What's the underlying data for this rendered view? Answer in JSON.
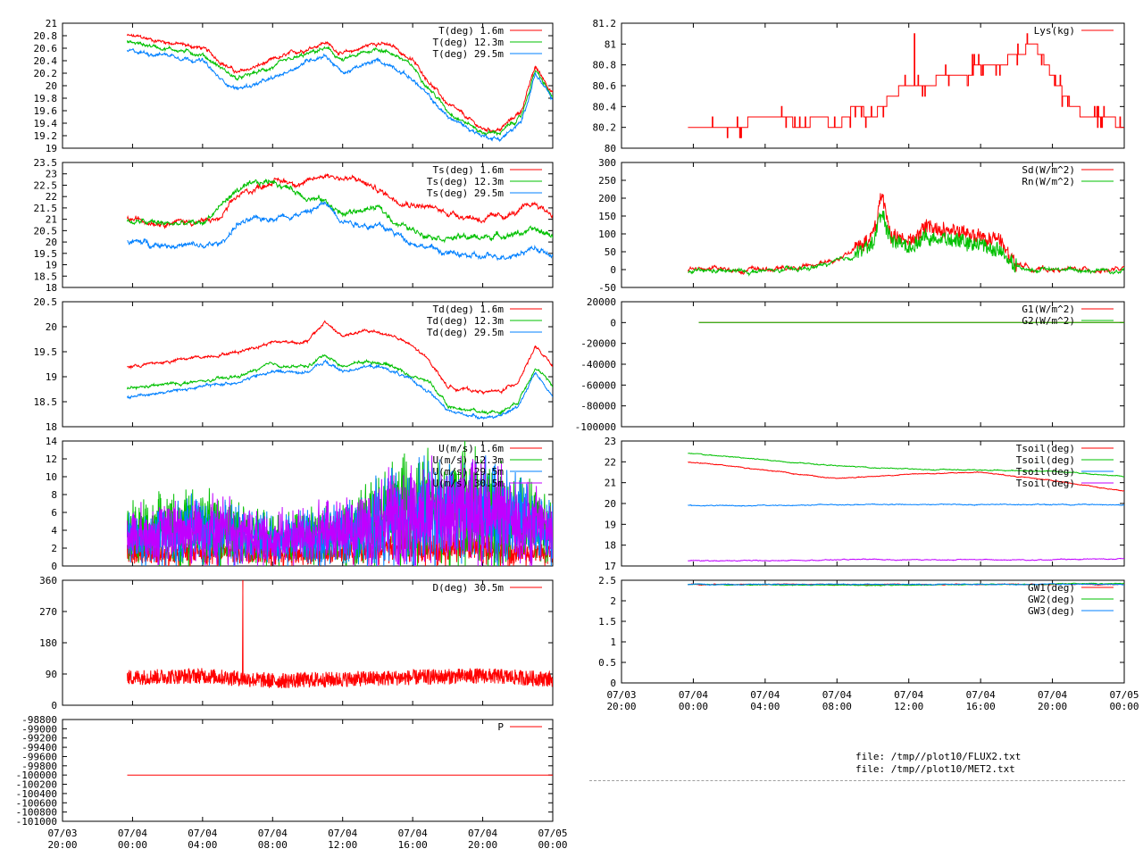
{
  "colors": {
    "red": "#ff0000",
    "green": "#00c000",
    "blue": "#0080ff",
    "purple": "#c000ff"
  },
  "files": [
    "file: /tmp//plot10/FLUX2.txt",
    "file: /tmp//plot10/MET2.txt"
  ],
  "x_axis": {
    "start_hours": -4,
    "end_hours": 24,
    "data_start_hours": -0.3,
    "ticks": [
      {
        "hours": -4,
        "date": "07/03",
        "time": "20:00"
      },
      {
        "hours": 0,
        "date": "07/04",
        "time": "00:00"
      },
      {
        "hours": 4,
        "date": "07/04",
        "time": "04:00"
      },
      {
        "hours": 8,
        "date": "07/04",
        "time": "08:00"
      },
      {
        "hours": 12,
        "date": "07/04",
        "time": "12:00"
      },
      {
        "hours": 16,
        "date": "07/04",
        "time": "16:00"
      },
      {
        "hours": 20,
        "date": "07/04",
        "time": "20:00"
      },
      {
        "hours": 24,
        "date": "07/05",
        "time": "00:00"
      }
    ]
  },
  "chart_data": [
    {
      "id": "temp",
      "type": "line",
      "ylim": [
        19,
        21
      ],
      "yticks": [
        19,
        19.2,
        19.4,
        19.6,
        19.8,
        20,
        20.2,
        20.4,
        20.6,
        20.8,
        21
      ],
      "x": [
        -0.3,
        2,
        4,
        5,
        6,
        8,
        10,
        11,
        12,
        13,
        14,
        15,
        16,
        18,
        20,
        21,
        22.2,
        23,
        24
      ],
      "series": [
        {
          "name": "T(deg)  1.6m",
          "color": "red",
          "values": [
            20.8,
            20.7,
            20.6,
            20.4,
            20.2,
            20.4,
            20.6,
            20.7,
            20.5,
            20.6,
            20.7,
            20.6,
            20.4,
            19.7,
            19.3,
            19.3,
            19.6,
            20.3,
            19.9
          ]
        },
        {
          "name": "T(deg) 12.3m",
          "color": "green",
          "values": [
            20.7,
            20.6,
            20.5,
            20.3,
            20.1,
            20.3,
            20.5,
            20.6,
            20.4,
            20.5,
            20.6,
            20.5,
            20.3,
            19.6,
            19.25,
            19.25,
            19.5,
            20.25,
            19.8
          ]
        },
        {
          "name": "T(deg) 29.5m",
          "color": "blue",
          "values": [
            20.55,
            20.5,
            20.4,
            20.1,
            19.95,
            20.1,
            20.4,
            20.5,
            20.2,
            20.3,
            20.4,
            20.3,
            20.1,
            19.5,
            19.2,
            19.15,
            19.4,
            20.2,
            19.75
          ]
        }
      ]
    },
    {
      "id": "tsonic",
      "type": "line",
      "ylim": [
        18,
        23.5
      ],
      "yticks": [
        18,
        18.5,
        19,
        19.5,
        20,
        20.5,
        21,
        21.5,
        22,
        22.5,
        23,
        23.5
      ],
      "x": [
        -0.3,
        2,
        4,
        5,
        6,
        8,
        10,
        11,
        12,
        13,
        14,
        15,
        16,
        18,
        20,
        21,
        22,
        23,
        24
      ],
      "series": [
        {
          "name": "Ts(deg)  1.6m",
          "color": "red",
          "values": [
            21,
            20.9,
            20.9,
            21,
            22,
            22.7,
            22.6,
            23,
            22.8,
            22.7,
            22.3,
            21.9,
            21.7,
            21.3,
            21,
            21.1,
            21.3,
            21.7,
            21.2
          ]
        },
        {
          "name": "Ts(deg) 12.3m",
          "color": "green",
          "values": [
            20.9,
            20.8,
            20.8,
            21.6,
            22.3,
            22.7,
            22,
            21.8,
            21.2,
            21.4,
            21.5,
            20.9,
            20.5,
            20.2,
            20.2,
            20.3,
            20.4,
            20.5,
            20.3
          ]
        },
        {
          "name": "Ts(deg) 29.5m",
          "color": "blue",
          "values": [
            20,
            19.9,
            19.8,
            19.9,
            20.8,
            21.1,
            21.3,
            21.7,
            21,
            20.8,
            20.7,
            20.4,
            20,
            19.5,
            19.3,
            19.4,
            19.5,
            19.8,
            19.3
          ]
        }
      ]
    },
    {
      "id": "tdew",
      "type": "line",
      "ylim": [
        18,
        20.5
      ],
      "yticks": [
        18,
        18.5,
        19,
        19.5,
        20,
        20.5
      ],
      "x": [
        -0.3,
        2,
        4,
        6,
        8,
        9,
        10,
        11,
        12,
        13,
        14,
        15,
        16,
        17,
        18,
        20,
        21,
        22,
        23,
        24
      ],
      "series": [
        {
          "name": "Td(deg)  1.6m",
          "color": "red",
          "values": [
            19.2,
            19.3,
            19.4,
            19.5,
            19.7,
            19.7,
            19.7,
            20.1,
            19.8,
            19.9,
            19.9,
            19.8,
            19.6,
            19.3,
            18.8,
            18.7,
            18.7,
            18.9,
            19.6,
            19.2
          ]
        },
        {
          "name": "Td(deg) 12.3m",
          "color": "green",
          "values": [
            18.75,
            18.85,
            18.9,
            19.0,
            19.25,
            19.2,
            19.2,
            19.45,
            19.2,
            19.3,
            19.3,
            19.2,
            19.0,
            18.9,
            18.4,
            18.3,
            18.3,
            18.5,
            19.2,
            18.8
          ]
        },
        {
          "name": "Td(deg) 29.5m",
          "color": "blue",
          "values": [
            18.6,
            18.7,
            18.8,
            18.9,
            19.1,
            19.1,
            19.1,
            19.3,
            19.1,
            19.2,
            19.2,
            19.1,
            18.9,
            18.7,
            18.3,
            18.2,
            18.2,
            18.4,
            19.1,
            18.6
          ]
        }
      ]
    },
    {
      "id": "wind",
      "type": "line",
      "ylim": [
        0,
        14
      ],
      "yticks": [
        0,
        2,
        4,
        6,
        8,
        10,
        12,
        14
      ],
      "x": [
        -0.3,
        4,
        8,
        12,
        16,
        20,
        24
      ],
      "series": [
        {
          "name": "U(m/s)  1.6m",
          "color": "red",
          "values": [
            1.5,
            1.5,
            1.4,
            1.5,
            2,
            1.8,
            1.4
          ]
        },
        {
          "name": "U(m/s) 12.3m",
          "color": "green",
          "values": [
            3.5,
            4.5,
            3,
            4,
            6.5,
            6.5,
            4
          ]
        },
        {
          "name": "U(m/s) 29.5m",
          "color": "blue",
          "values": [
            3,
            4,
            2.8,
            3.6,
            6,
            6,
            3.8
          ]
        },
        {
          "name": "U(m/s) 30.5m",
          "color": "purple",
          "values": [
            3.2,
            4.2,
            2.9,
            3.8,
            6,
            6.2,
            3.8
          ]
        }
      ]
    },
    {
      "id": "dir",
      "type": "line",
      "ylim": [
        0,
        360
      ],
      "yticks": [
        0,
        90,
        180,
        270,
        360
      ],
      "x": [
        -0.3,
        4,
        8,
        12,
        16,
        20,
        24
      ],
      "series": [
        {
          "name": "D(deg)  30.5m",
          "color": "red",
          "values": [
            80,
            85,
            70,
            75,
            80,
            85,
            75
          ]
        }
      ]
    },
    {
      "id": "press",
      "type": "line",
      "ylim": [
        -101000,
        -98800
      ],
      "yticks": [
        -101000,
        -100800,
        -100600,
        -100400,
        -100200,
        -100000,
        -99800,
        -99600,
        -99400,
        -99200,
        -99000,
        -98800
      ],
      "x": [
        -0.3,
        24
      ],
      "series": [
        {
          "name": "P",
          "color": "red",
          "values": [
            -100000,
            -100000
          ]
        }
      ]
    },
    {
      "id": "lys",
      "type": "line",
      "ylim": [
        80,
        81.2
      ],
      "yticks": [
        80,
        80.2,
        80.4,
        80.6,
        80.8,
        81,
        81.2
      ],
      "x": [
        -0.3,
        2,
        4,
        5,
        6,
        7,
        8,
        9,
        10,
        11,
        12,
        13,
        14,
        15,
        16,
        17,
        18,
        19,
        20,
        21,
        22,
        23,
        24
      ],
      "series": [
        {
          "name": "Lys(kg)",
          "color": "red",
          "values": [
            80.2,
            80.2,
            80.3,
            80.3,
            80.2,
            80.3,
            80.2,
            80.4,
            80.3,
            80.5,
            80.6,
            80.6,
            80.7,
            80.7,
            80.8,
            80.8,
            80.9,
            81.0,
            80.7,
            80.4,
            80.3,
            80.3,
            80.2
          ]
        }
      ]
    },
    {
      "id": "rad",
      "type": "line",
      "ylim": [
        -50,
        300
      ],
      "yticks": [
        -50,
        0,
        50,
        100,
        150,
        200,
        250,
        300
      ],
      "x": [
        -0.3,
        4,
        6,
        7,
        8,
        9,
        10,
        10.5,
        11,
        12,
        13,
        14,
        15,
        16,
        17,
        18,
        19,
        20,
        24
      ],
      "series": [
        {
          "name": "Sd(W/m^2)",
          "color": "red",
          "values": [
            0,
            0,
            5,
            15,
            30,
            60,
            90,
            210,
            100,
            80,
            120,
            110,
            100,
            90,
            80,
            20,
            2,
            0,
            0
          ]
        },
        {
          "name": "Rn(W/m^2)",
          "color": "green",
          "values": [
            -5,
            -5,
            0,
            10,
            20,
            40,
            70,
            160,
            80,
            60,
            90,
            85,
            75,
            70,
            60,
            10,
            0,
            -2,
            0
          ]
        }
      ]
    },
    {
      "id": "ground",
      "type": "line",
      "ylim": [
        -100000,
        20000
      ],
      "yticks": [
        -100000,
        -80000,
        -60000,
        -40000,
        -20000,
        0,
        20000
      ],
      "x": [
        0.3,
        24
      ],
      "series": [
        {
          "name": "G1(W/m^2)",
          "color": "red",
          "values": [
            0,
            0
          ]
        },
        {
          "name": "G2(W/m^2)",
          "color": "green",
          "values": [
            0,
            0
          ]
        }
      ]
    },
    {
      "id": "tsoil",
      "type": "line",
      "ylim": [
        17,
        23
      ],
      "yticks": [
        17,
        18,
        19,
        20,
        21,
        22,
        23
      ],
      "x": [
        -0.3,
        4,
        8,
        12,
        16,
        20,
        24
      ],
      "series": [
        {
          "name": "Tsoil(deg)",
          "color": "red",
          "values": [
            22.0,
            21.6,
            21.2,
            21.4,
            21.5,
            21.1,
            20.6
          ]
        },
        {
          "name": "Tsoil(deg)",
          "color": "green",
          "values": [
            22.4,
            22.1,
            21.8,
            21.65,
            21.6,
            21.55,
            21.3
          ]
        },
        {
          "name": "Tsoil(deg)",
          "color": "blue",
          "values": [
            19.9,
            19.9,
            19.95,
            19.95,
            19.95,
            19.95,
            19.95
          ]
        },
        {
          "name": "Tsoil(deg)",
          "color": "purple",
          "values": [
            17.25,
            17.25,
            17.3,
            17.3,
            17.3,
            17.3,
            17.35
          ]
        }
      ]
    },
    {
      "id": "gw",
      "type": "line",
      "ylim": [
        0,
        2.5
      ],
      "yticks": [
        0,
        0.5,
        1,
        1.5,
        2,
        2.5
      ],
      "x": [
        -0.3,
        12,
        24
      ],
      "series": [
        {
          "name": "GW1(deg)",
          "color": "red",
          "values": [
            2.4,
            2.4,
            2.4
          ]
        },
        {
          "name": "GW2(deg)",
          "color": "green",
          "values": [
            2.4,
            2.38,
            2.42
          ]
        },
        {
          "name": "GW3(deg)",
          "color": "blue",
          "values": [
            2.4,
            2.4,
            2.4
          ]
        }
      ]
    }
  ]
}
